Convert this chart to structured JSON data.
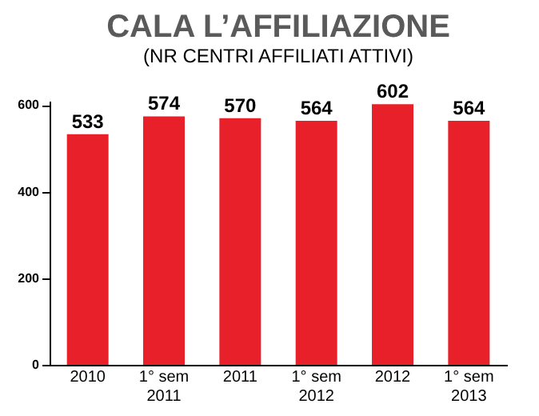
{
  "chart_data": {
    "type": "bar",
    "title": "CALA L’AFFILIAZIONE",
    "subtitle": "(NR CENTRI AFFILIATI ATTIVI)",
    "categories": [
      "2010",
      "1° sem 2011",
      "2011",
      "1° sem 2012",
      "2012",
      "1° sem 2013"
    ],
    "values": [
      533,
      574,
      570,
      564,
      602,
      564
    ],
    "color": "#e8202a",
    "ylim": [
      0,
      610
    ],
    "yticks": [
      0,
      200,
      400,
      600
    ],
    "grid": false,
    "data_labels": true
  }
}
